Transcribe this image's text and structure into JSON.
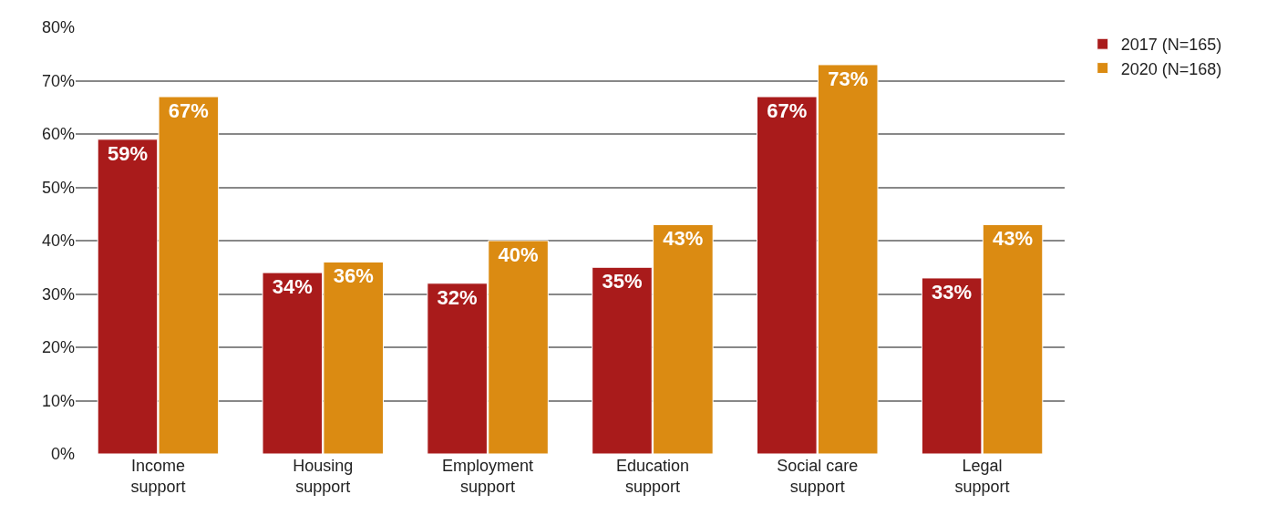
{
  "chart_data": {
    "type": "bar",
    "categories": [
      "Income support",
      "Housing support",
      "Employment support",
      "Education support",
      "Social care support",
      "Legal support"
    ],
    "series": [
      {
        "name": "2017 (N=165)",
        "color": "#a91b1b",
        "values": [
          59,
          34,
          32,
          35,
          67,
          33
        ],
        "value_labels": [
          "59%",
          "34%",
          "32%",
          "35%",
          "67%",
          "33%"
        ]
      },
      {
        "name": "2020 (N=168)",
        "color": "#db8b12",
        "values": [
          67,
          36,
          40,
          43,
          73,
          43
        ],
        "value_labels": [
          "67%",
          "36%",
          "40%",
          "43%",
          "73%",
          "43%"
        ]
      }
    ],
    "ylim": [
      0,
      80
    ],
    "yticks": [
      {
        "value": 0,
        "label": "0%"
      },
      {
        "value": 10,
        "label": "10%"
      },
      {
        "value": 20,
        "label": "20%"
      },
      {
        "value": 30,
        "label": "30%"
      },
      {
        "value": 40,
        "label": "40%"
      },
      {
        "value": 50,
        "label": "50%"
      },
      {
        "value": 60,
        "label": "60%"
      },
      {
        "value": 70,
        "label": "70%"
      },
      {
        "value": 80,
        "label": "80%"
      }
    ],
    "grid": "y",
    "legend": "top right"
  }
}
